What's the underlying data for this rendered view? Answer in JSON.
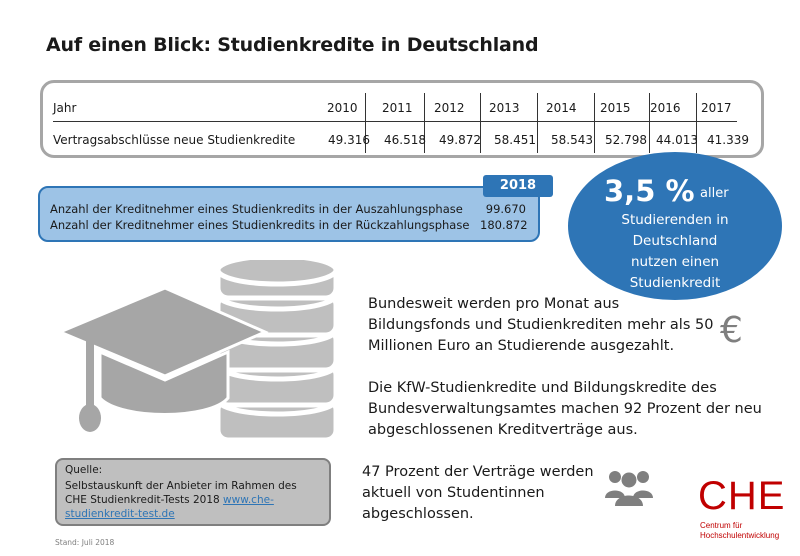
{
  "title": "Auf einen Blick: Studienkredite in Deutschland",
  "table": {
    "header_label": "Jahr",
    "years": [
      "2010",
      "2011",
      "2012",
      "2013",
      "2014",
      "2015",
      "2016",
      "2017"
    ],
    "row_label": "Vertragsabschlüsse neue Studienkredite",
    "values": [
      "49.316",
      "46.518",
      "49.872",
      "58.451",
      "58.543",
      "52.798",
      "44.013",
      "41.339"
    ]
  },
  "borrowers": {
    "year": "2018",
    "rows": [
      {
        "label": "Anzahl der Kreditnehmer eines Studienkredits in der Auszahlungsphase",
        "value": "99.670"
      },
      {
        "label": "Anzahl der Kreditnehmer eines Studienkredits in der Rückzahlungsphase",
        "value": "180.872"
      }
    ]
  },
  "highlight": {
    "big": "3,5 %",
    "small": "aller",
    "lines": [
      "Studierenden in",
      "Deutschland",
      "nutzen einen",
      "Studienkredit"
    ]
  },
  "facts": {
    "fact1": "Bundesweit werden pro Monat aus Bildungsfonds und Studienkrediten mehr als 50 Millionen Euro an Studierende ausgezahlt.",
    "fact2": "Die KfW-Studienkredite und Bildungskredite des Bundesverwaltungsamtes machen 92 Prozent der neu abgeschlossenen Kreditverträge aus.",
    "fact3": "47 Prozent der Verträge werden aktuell von Studentinnen abgeschlossen.",
    "euro_symbol": "€"
  },
  "source": {
    "heading": "Quelle:",
    "text": "Selbstauskunft der Anbieter im Rahmen des CHE Studienkredit-Tests 2018",
    "link": "www.che-studienkredit-test.de"
  },
  "stand": "Stand: Juli 2018",
  "logo": {
    "c": "C",
    "he": "HE",
    "sub1": "Centrum für",
    "sub2": "Hochschulentwicklung"
  },
  "colors": {
    "accent": "#2e75b6",
    "accent_light": "#9dc3e6",
    "gray": "#a6a6a6",
    "brand_red": "#c00000"
  }
}
